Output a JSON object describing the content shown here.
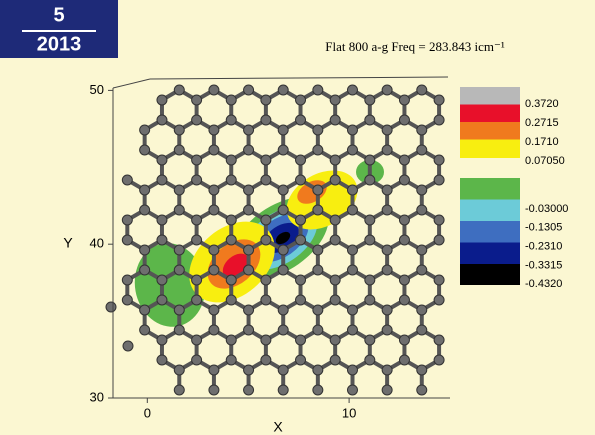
{
  "badge": {
    "issue": "5",
    "year": "2013"
  },
  "chart_data": {
    "type": "contour",
    "title": "Flat 800 a-g Freq = 283.843 icm⁻¹",
    "x_label": "X",
    "y_label": "Y",
    "xlim": [
      -1.7,
      15
    ],
    "ylim": [
      30,
      51
    ],
    "xticks": [
      0,
      10
    ],
    "yticks": [
      30,
      40,
      50
    ],
    "legend": {
      "colors": [
        "#b8b8b8",
        "#e8102a",
        "#f07a1e",
        "#f8ee10",
        "#5cb64a",
        "#6ccbd8",
        "#3e6ec0",
        "#0a1c8c",
        "#000000"
      ],
      "levels": [
        {
          "value": 0.372,
          "label": "0.3720"
        },
        {
          "value": 0.2715,
          "label": "0.2715"
        },
        {
          "value": 0.171,
          "label": "0.1710"
        },
        {
          "value": 0.0705,
          "label": "0.07050"
        },
        {
          "value": -0.03,
          "label": "-0.03000"
        },
        {
          "value": -0.1305,
          "label": "-0.1305"
        },
        {
          "value": -0.231,
          "label": "-0.2310"
        },
        {
          "value": -0.3315,
          "label": "-0.3315"
        },
        {
          "value": -0.432,
          "label": "-0.4320"
        }
      ]
    }
  }
}
